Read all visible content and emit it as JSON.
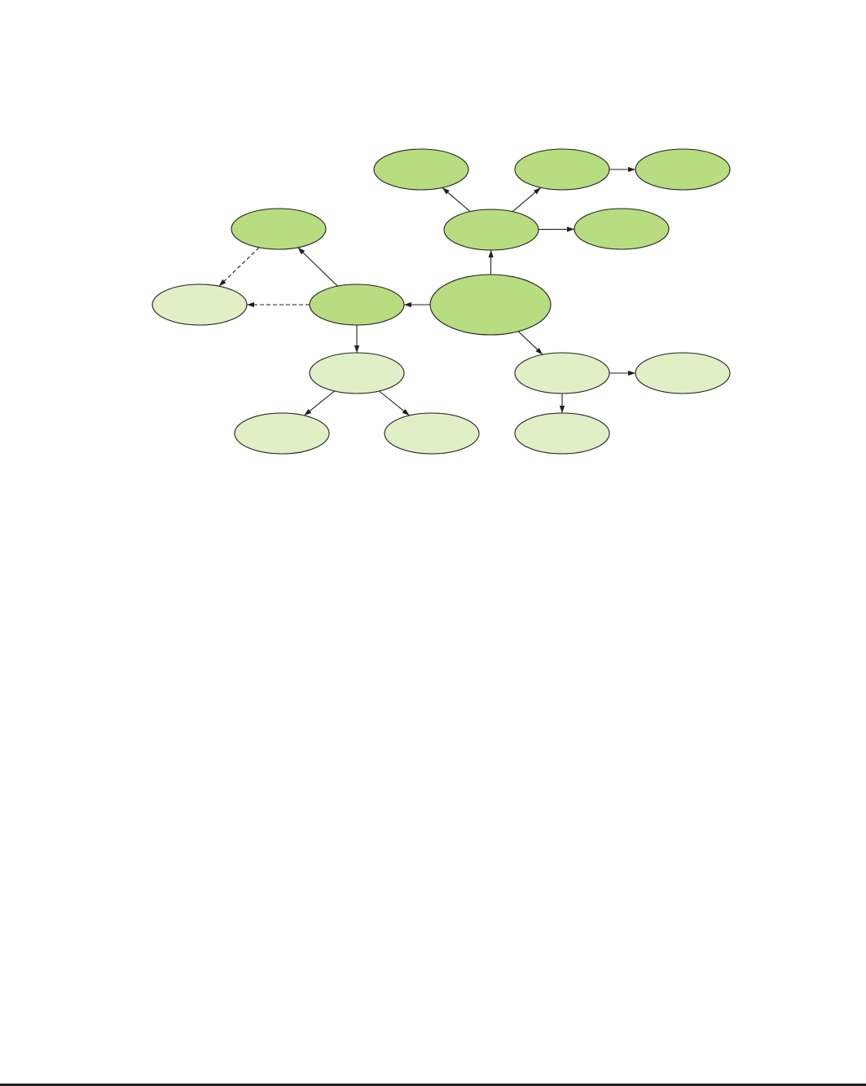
{
  "diagram": {
    "colors": {
      "dark_fill": "#b8dc80",
      "light_fill": "#e0efc6",
      "outline": "#231f20",
      "edge": "#231f20"
    },
    "nodes": [
      {
        "id": "center",
        "label": "",
        "shade": "dark"
      },
      {
        "id": "upper-hub",
        "label": "",
        "shade": "dark"
      },
      {
        "id": "top-left",
        "label": "",
        "shade": "dark"
      },
      {
        "id": "top-middle",
        "label": "",
        "shade": "dark"
      },
      {
        "id": "top-right",
        "label": "",
        "shade": "dark"
      },
      {
        "id": "upper-right",
        "label": "",
        "shade": "dark"
      },
      {
        "id": "left-hub",
        "label": "",
        "shade": "dark"
      },
      {
        "id": "far-upper-left",
        "label": "",
        "shade": "dark"
      },
      {
        "id": "far-left",
        "label": "",
        "shade": "light"
      },
      {
        "id": "left-child",
        "label": "",
        "shade": "light"
      },
      {
        "id": "left-grandchild-a",
        "label": "",
        "shade": "light"
      },
      {
        "id": "left-grandchild-b",
        "label": "",
        "shade": "light"
      },
      {
        "id": "lower-hub",
        "label": "",
        "shade": "light"
      },
      {
        "id": "lower-right",
        "label": "",
        "shade": "light"
      },
      {
        "id": "lower-child",
        "label": "",
        "shade": "light"
      }
    ],
    "edges": [
      {
        "from": "center",
        "to": "upper-hub",
        "style": "solid"
      },
      {
        "from": "upper-hub",
        "to": "top-left",
        "style": "solid"
      },
      {
        "from": "upper-hub",
        "to": "top-middle",
        "style": "solid"
      },
      {
        "from": "top-middle",
        "to": "top-right",
        "style": "solid"
      },
      {
        "from": "upper-hub",
        "to": "upper-right",
        "style": "solid"
      },
      {
        "from": "center",
        "to": "left-hub",
        "style": "solid"
      },
      {
        "from": "left-hub",
        "to": "far-upper-left",
        "style": "solid"
      },
      {
        "from": "far-upper-left",
        "to": "far-left",
        "style": "dashed"
      },
      {
        "from": "left-hub",
        "to": "far-left",
        "style": "dashed"
      },
      {
        "from": "left-hub",
        "to": "left-child",
        "style": "solid"
      },
      {
        "from": "left-child",
        "to": "left-grandchild-a",
        "style": "solid"
      },
      {
        "from": "left-child",
        "to": "left-grandchild-b",
        "style": "solid"
      },
      {
        "from": "center",
        "to": "lower-hub",
        "style": "solid"
      },
      {
        "from": "lower-hub",
        "to": "lower-right",
        "style": "solid"
      },
      {
        "from": "lower-hub",
        "to": "lower-child",
        "style": "solid"
      }
    ]
  }
}
